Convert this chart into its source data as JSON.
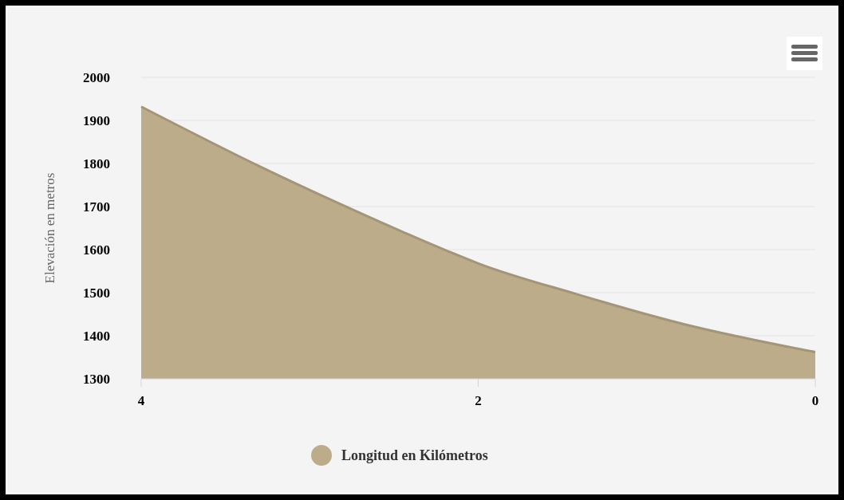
{
  "chart_data": {
    "type": "area",
    "ylabel": "Elevación en metros",
    "x": [
      4,
      3.29,
      2.74,
      2.19,
      2,
      1.42,
      0.78,
      0
    ],
    "series": [
      {
        "name": "Longitud en Kilómetros",
        "color": "#bdac89",
        "values": [
          1932,
          1792,
          1692,
          1598,
          1568,
          1497,
          1427,
          1362
        ]
      }
    ],
    "xlim": [
      4,
      0
    ],
    "xticks": [
      4,
      2,
      0
    ],
    "ylim": [
      1300,
      2000
    ],
    "yticks": [
      1300,
      1400,
      1500,
      1600,
      1700,
      1800,
      1900,
      2000
    ],
    "grid": "y",
    "legend": "bottom"
  }
}
